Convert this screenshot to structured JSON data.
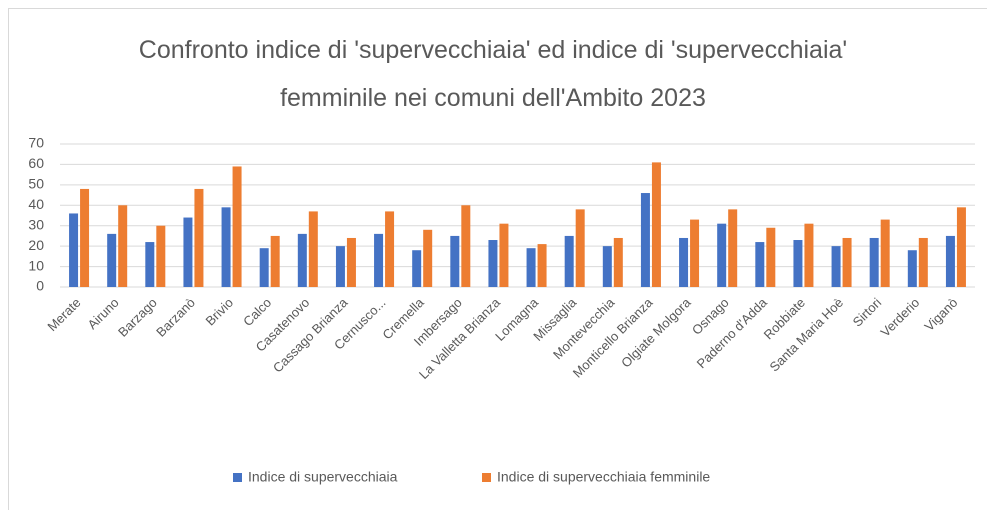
{
  "chart_data": {
    "type": "bar",
    "title": "Confronto indice di 'supervecchiaia' ed indice di 'supervecchiaia' femminile nei comuni dell'Ambito 2023",
    "categories": [
      "Merate",
      "Airuno",
      "Barzago",
      "Barzanò",
      "Brivio",
      "Calco",
      "Casatenovo",
      "Cassago Brianza",
      "Cernusco...",
      "Cremella",
      "Imbersago",
      "La Valletta Brianza",
      "Lomagna",
      "Missaglia",
      "Montevecchia",
      "Monticello Brianza",
      "Olgiate Molgora",
      "Osnago",
      "Paderno d'Adda",
      "Robbiate",
      "Santa Maria Hoè",
      "Sirtori",
      "Verderio",
      "Viganò"
    ],
    "series": [
      {
        "name": "Indice di supervecchiaia",
        "color": "#4472c4",
        "values": [
          36,
          26,
          22,
          34,
          39,
          19,
          26,
          20,
          26,
          18,
          25,
          23,
          19,
          25,
          20,
          46,
          24,
          31,
          22,
          23,
          20,
          24,
          18,
          25
        ]
      },
      {
        "name": "Indice di supervecchiaia femminile",
        "color": "#ed7d31",
        "values": [
          48,
          40,
          30,
          48,
          59,
          25,
          37,
          24,
          37,
          28,
          40,
          31,
          21,
          38,
          24,
          61,
          33,
          38,
          29,
          31,
          24,
          33,
          24,
          39
        ]
      }
    ],
    "ylim": [
      0,
      70
    ],
    "yticks": [
      0,
      10,
      20,
      30,
      40,
      50,
      60,
      70
    ],
    "grid": true,
    "legend": "bottom"
  }
}
